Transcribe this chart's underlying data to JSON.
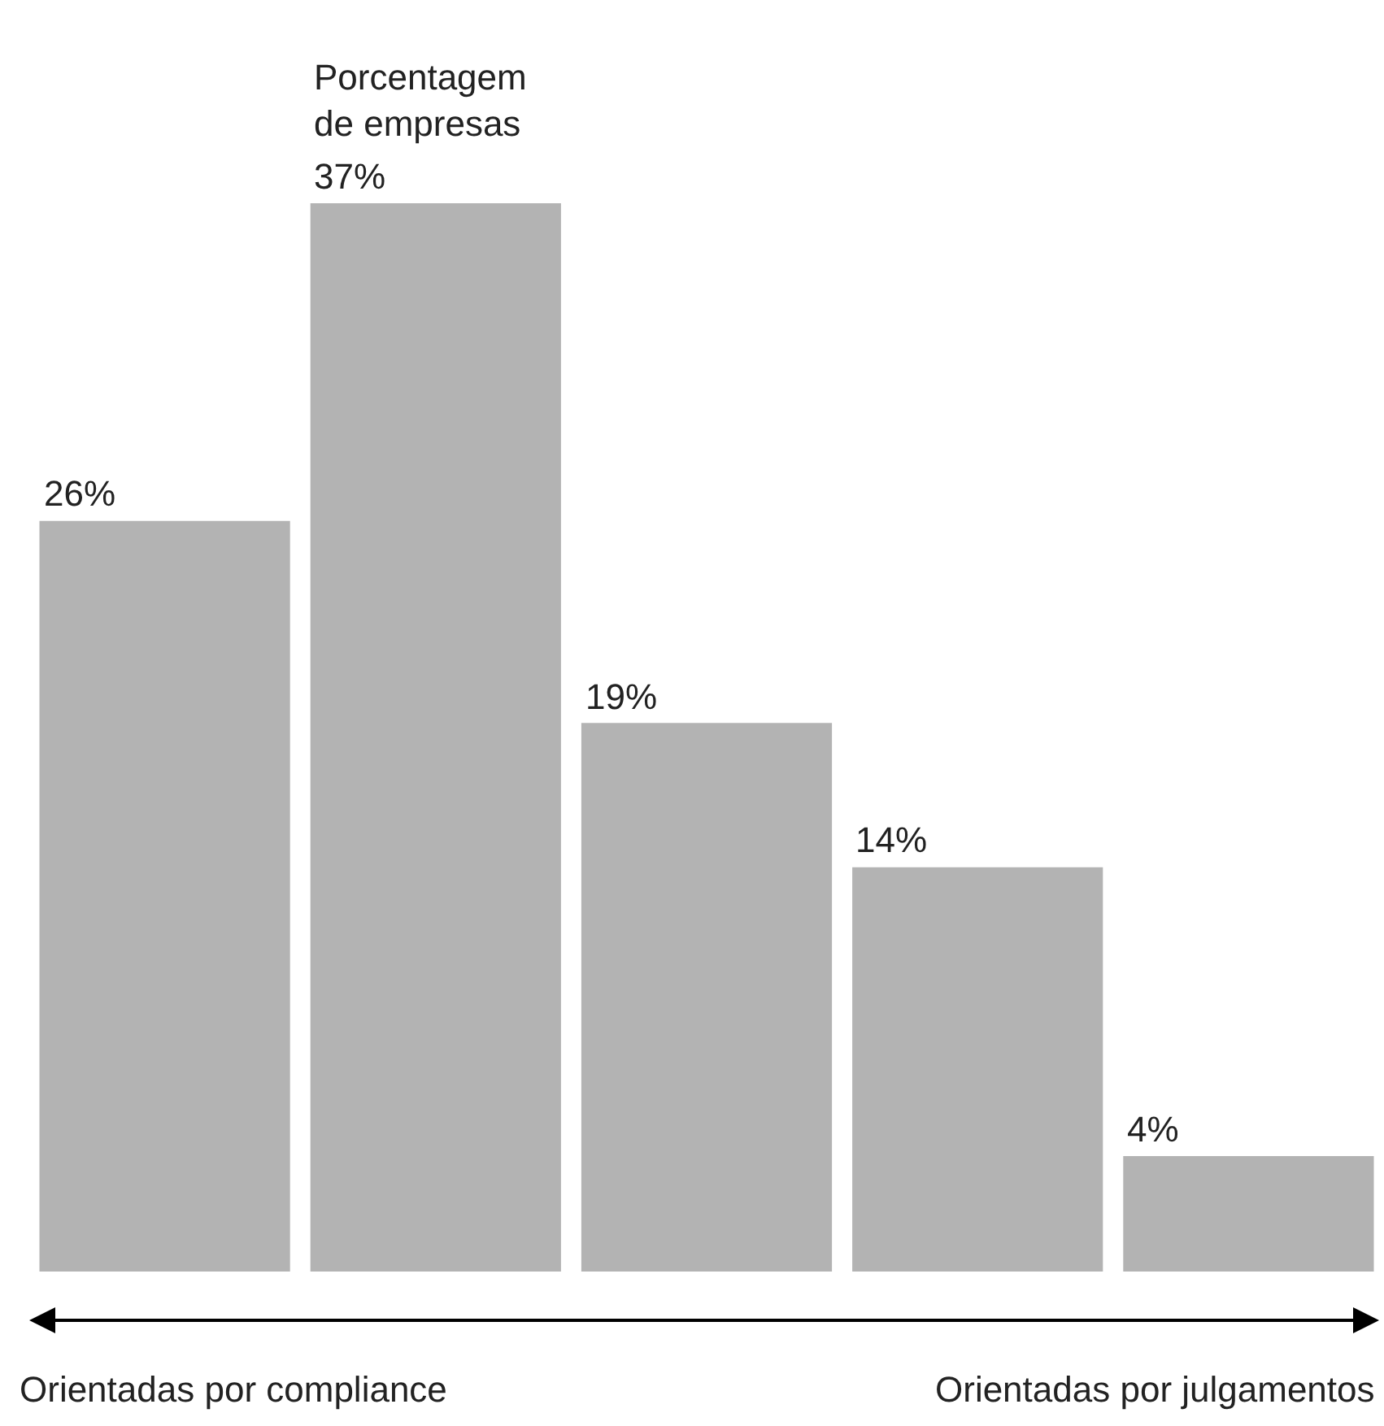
{
  "chart_data": {
    "type": "bar",
    "ylabel": "Porcentagem\nde empresas",
    "categories": [
      null,
      null,
      null,
      null,
      null
    ],
    "values": [
      26,
      37,
      19,
      14,
      4
    ],
    "value_labels": [
      "26%",
      "37%",
      "19%",
      "14%",
      "4%"
    ],
    "color": "#b3b3b3",
    "ylim": [
      0,
      37
    ],
    "annotations": [
      "Orientadas por compliance",
      "Orientadas por julgamentos"
    ]
  }
}
